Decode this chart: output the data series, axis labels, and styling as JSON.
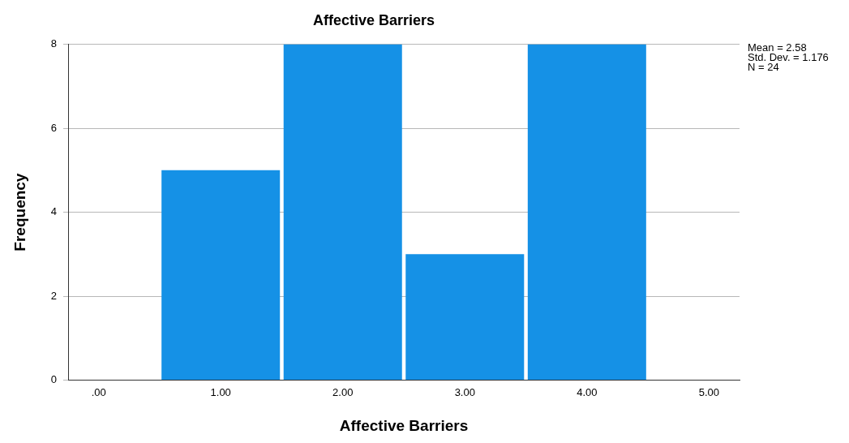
{
  "chart_data": {
    "type": "histogram",
    "title": "Affective Barriers",
    "xlabel": "Affective Barriers",
    "ylabel": "Frequency",
    "bins": [
      0.5,
      1.5,
      2.5,
      3.5,
      4.5
    ],
    "values": [
      5,
      8,
      3,
      8
    ],
    "color": "#1591e6",
    "xlim": [
      -0.25,
      5.25
    ],
    "xticks": [
      {
        "value": 0,
        "label": ".00"
      },
      {
        "value": 1,
        "label": "1.00"
      },
      {
        "value": 2,
        "label": "2.00"
      },
      {
        "value": 3,
        "label": "3.00"
      },
      {
        "value": 4,
        "label": "4.00"
      },
      {
        "value": 5,
        "label": "5.00"
      }
    ],
    "ylim": [
      0,
      8
    ],
    "yticks": [
      0,
      2,
      4,
      6,
      8
    ],
    "grid": "y",
    "legend": false,
    "annotations": [
      "Mean = 2.58",
      "Std. Dev. = 1.176",
      "N = 24"
    ]
  }
}
